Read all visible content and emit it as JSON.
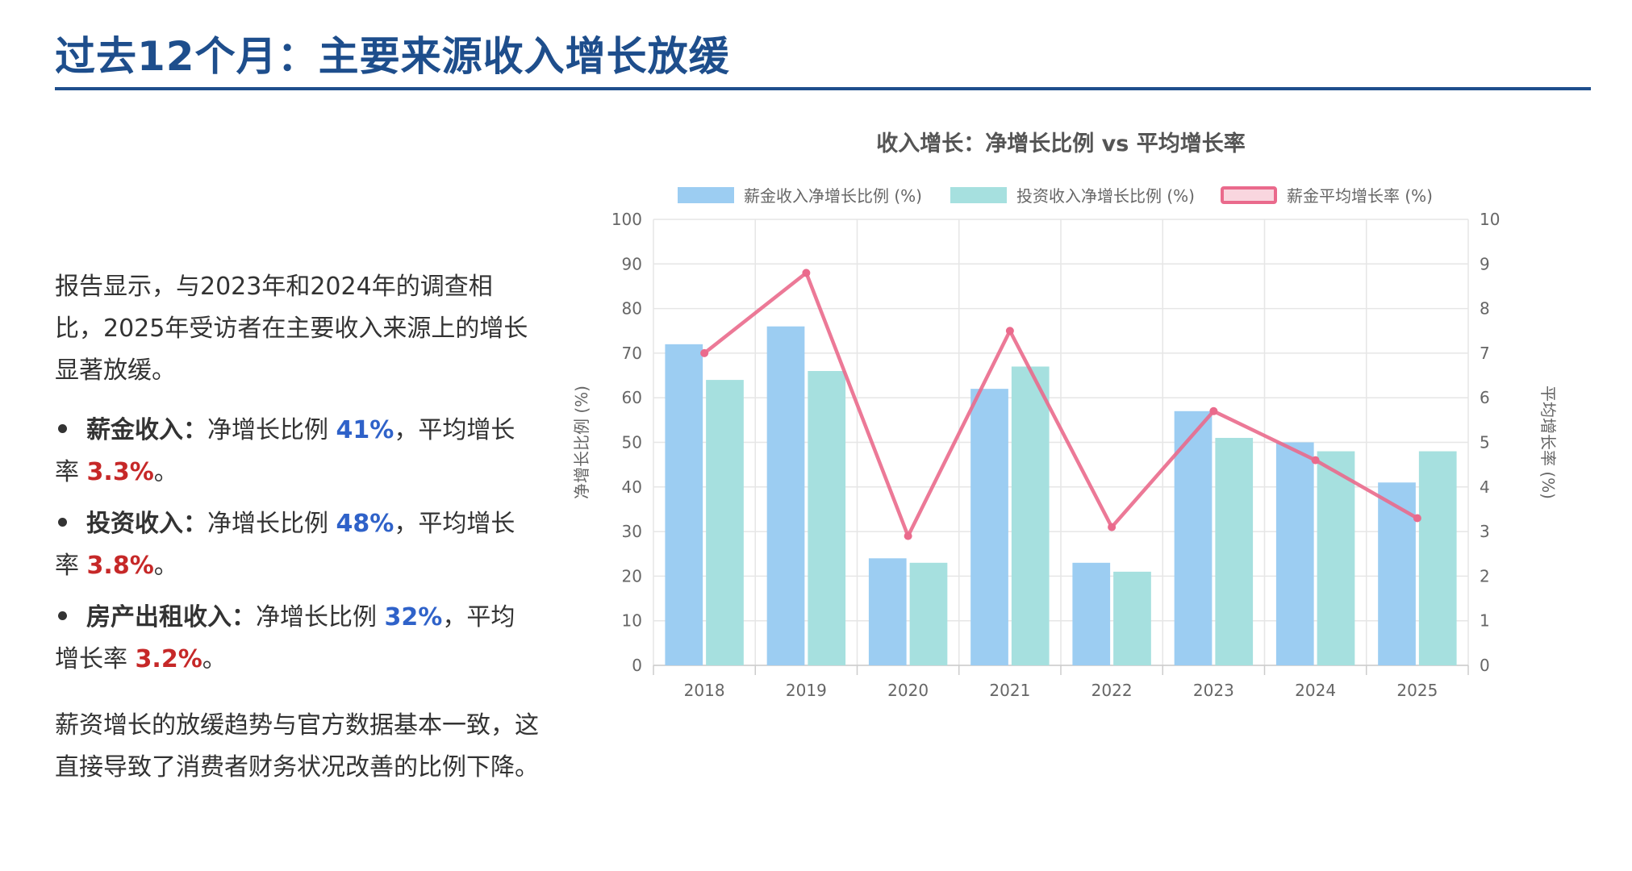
{
  "page": {
    "title": "过去12个月：主要来源收入增长放缓"
  },
  "left": {
    "intro": "报告显示，与2023年和2024年的调查相比，2025年受访者在主要收入来源上的增长显著放缓。",
    "bullets": [
      {
        "title": "薪金收入：",
        "mid": "净增长比例 ",
        "ratio": "41%",
        "sep": "，平均增长率 ",
        "rate": "3.3%",
        "end": "。"
      },
      {
        "title": "投资收入：",
        "mid": "净增长比例 ",
        "ratio": "48%",
        "sep": "，平均增长率 ",
        "rate": "3.8%",
        "end": "。"
      },
      {
        "title": "房产出租收入：",
        "mid": "净增长比例 ",
        "ratio": "32%",
        "sep": "，平均增长率 ",
        "rate": "3.2%",
        "end": "。"
      }
    ],
    "outro": "薪资增长的放缓趋势与官方数据基本一致，这直接导致了消费者财务状况改善的比例下降。"
  },
  "colors": {
    "title": "#1e4e8c",
    "salary_bar": "#9ccdf2",
    "invest_bar": "#a6e0df",
    "line": "#ea6a8c",
    "ratio_text": "#2f62c9",
    "rate_text": "#c62828"
  },
  "chart_data": {
    "type": "bar",
    "title": "收入增长：净增长比例 vs 平均增长率",
    "categories": [
      "2018",
      "2019",
      "2020",
      "2021",
      "2022",
      "2023",
      "2024",
      "2025"
    ],
    "series": [
      {
        "name": "薪金收入净增长比例 (%)",
        "type": "bar",
        "axis": "left",
        "values": [
          72,
          76,
          24,
          62,
          23,
          57,
          50,
          41
        ]
      },
      {
        "name": "投资收入净增长比例 (%)",
        "type": "bar",
        "axis": "left",
        "values": [
          64,
          66,
          23,
          67,
          21,
          51,
          48,
          48
        ]
      },
      {
        "name": "薪金平均增长率 (%)",
        "type": "line",
        "axis": "right",
        "values": [
          7.0,
          8.8,
          2.9,
          7.5,
          3.1,
          5.7,
          4.6,
          3.3
        ]
      }
    ],
    "ylabel": "净增长比例 (%)",
    "y2label": "平均增长率 (%)",
    "ylim": [
      0,
      100
    ],
    "y2lim": [
      0,
      10
    ],
    "yticks": [
      "0",
      "10",
      "20",
      "30",
      "40",
      "50",
      "60",
      "70",
      "80",
      "90",
      "100"
    ],
    "y2ticks": [
      "0",
      "1",
      "2",
      "3",
      "4",
      "5",
      "6",
      "7",
      "8",
      "9",
      "10"
    ],
    "grid": true,
    "legend_position": "top"
  }
}
